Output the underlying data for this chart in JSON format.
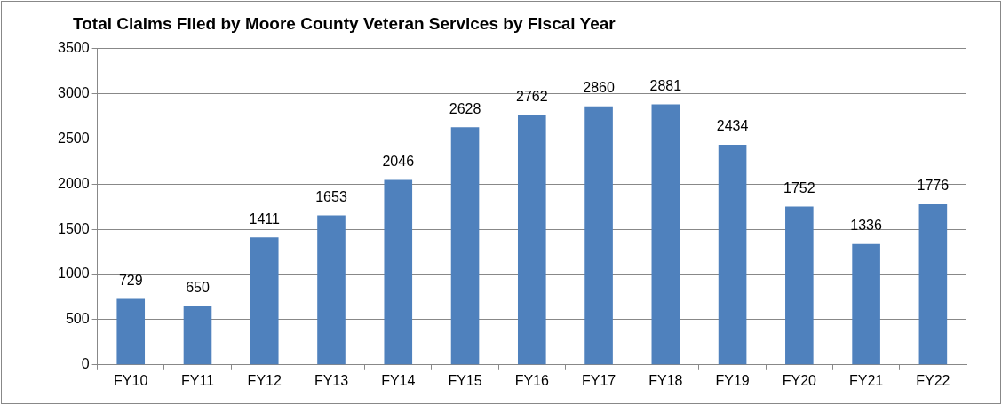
{
  "chart_data": {
    "type": "bar",
    "title": "Total Claims Filed by Moore County Veteran Services by Fiscal Year",
    "categories": [
      "FY10",
      "FY11",
      "FY12",
      "FY13",
      "FY14",
      "FY15",
      "FY16",
      "FY17",
      "FY18",
      "FY19",
      "FY20",
      "FY21",
      "FY22"
    ],
    "values": [
      729,
      650,
      1411,
      1653,
      2046,
      2628,
      2762,
      2860,
      2881,
      2434,
      1752,
      1336,
      1776
    ],
    "color": "#4f81bd",
    "ylim": [
      0,
      3500
    ],
    "yticks": [
      0,
      500,
      1000,
      1500,
      2000,
      2500,
      3000,
      3500
    ],
    "grid": "y",
    "legend": false,
    "data_labels": true
  }
}
